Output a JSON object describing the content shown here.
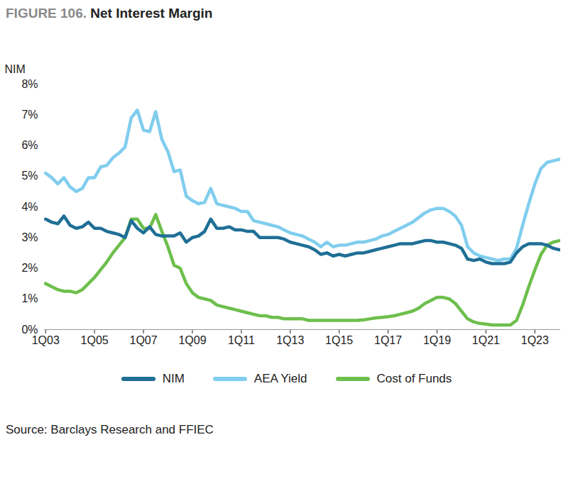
{
  "chart_data": {
    "type": "line",
    "title": "FIGURE 106. Net Interest Margin",
    "y_label": "NIM",
    "caption": "Source: Barclays Research and FFIEC",
    "categories": [
      "1Q03",
      null,
      null,
      null,
      null,
      null,
      null,
      null,
      "1Q05",
      null,
      null,
      null,
      null,
      null,
      null,
      null,
      "1Q07",
      null,
      null,
      null,
      null,
      null,
      null,
      null,
      "1Q09",
      null,
      null,
      null,
      null,
      null,
      null,
      null,
      "1Q11",
      null,
      null,
      null,
      null,
      null,
      null,
      null,
      "1Q13",
      null,
      null,
      null,
      null,
      null,
      null,
      null,
      "1Q15",
      null,
      null,
      null,
      null,
      null,
      null,
      null,
      "1Q17",
      null,
      null,
      null,
      null,
      null,
      null,
      null,
      "1Q19",
      null,
      null,
      null,
      null,
      null,
      null,
      null,
      "1Q21",
      null,
      null,
      null,
      null,
      null,
      null,
      null,
      "1Q23",
      null,
      null,
      null,
      null
    ],
    "series": [
      {
        "name": "NIM",
        "color": "#1f6f96",
        "values": [
          3.6,
          3.5,
          3.45,
          3.7,
          3.4,
          3.3,
          3.35,
          3.5,
          3.3,
          3.3,
          3.2,
          3.15,
          3.1,
          3.0,
          3.55,
          3.3,
          3.15,
          3.35,
          3.1,
          3.05,
          3.05,
          3.05,
          3.15,
          2.85,
          3.0,
          3.05,
          3.2,
          3.6,
          3.3,
          3.3,
          3.35,
          3.25,
          3.25,
          3.2,
          3.2,
          3.0,
          3.0,
          3.0,
          3.0,
          2.95,
          2.85,
          2.8,
          2.75,
          2.7,
          2.6,
          2.45,
          2.5,
          2.4,
          2.45,
          2.4,
          2.45,
          2.5,
          2.5,
          2.55,
          2.6,
          2.65,
          2.7,
          2.75,
          2.8,
          2.8,
          2.8,
          2.85,
          2.9,
          2.9,
          2.85,
          2.85,
          2.8,
          2.75,
          2.65,
          2.3,
          2.25,
          2.3,
          2.2,
          2.15,
          2.15,
          2.15,
          2.2,
          2.5,
          2.7,
          2.8,
          2.8,
          2.8,
          2.75,
          2.65,
          2.6
        ]
      },
      {
        "name": "AEA Yield",
        "color": "#80cdee",
        "values": [
          5.1,
          4.95,
          4.75,
          4.95,
          4.65,
          4.5,
          4.6,
          4.95,
          4.95,
          5.3,
          5.35,
          5.6,
          5.75,
          5.95,
          6.9,
          7.15,
          6.5,
          6.45,
          7.1,
          6.2,
          5.8,
          5.15,
          5.2,
          4.35,
          4.2,
          4.1,
          4.15,
          4.6,
          4.1,
          4.05,
          4.0,
          3.95,
          3.85,
          3.85,
          3.55,
          3.5,
          3.45,
          3.4,
          3.35,
          3.25,
          3.15,
          3.1,
          3.05,
          2.95,
          2.85,
          2.7,
          2.85,
          2.7,
          2.75,
          2.75,
          2.8,
          2.85,
          2.85,
          2.9,
          2.95,
          3.05,
          3.1,
          3.2,
          3.3,
          3.4,
          3.5,
          3.65,
          3.8,
          3.9,
          3.95,
          3.95,
          3.85,
          3.7,
          3.4,
          2.7,
          2.5,
          2.4,
          2.35,
          2.3,
          2.25,
          2.3,
          2.3,
          2.65,
          3.4,
          4.1,
          4.75,
          5.25,
          5.45,
          5.5,
          5.55
        ]
      },
      {
        "name": "Cost of Funds",
        "color": "#6dbf4c",
        "values": [
          1.5,
          1.4,
          1.3,
          1.25,
          1.25,
          1.2,
          1.3,
          1.5,
          1.7,
          1.95,
          2.2,
          2.5,
          2.75,
          3.0,
          3.6,
          3.6,
          3.3,
          3.3,
          3.75,
          3.2,
          2.7,
          2.1,
          2.0,
          1.5,
          1.2,
          1.05,
          1.0,
          0.95,
          0.8,
          0.75,
          0.7,
          0.65,
          0.6,
          0.55,
          0.5,
          0.45,
          0.45,
          0.4,
          0.4,
          0.35,
          0.35,
          0.35,
          0.35,
          0.3,
          0.3,
          0.3,
          0.3,
          0.3,
          0.3,
          0.3,
          0.3,
          0.3,
          0.32,
          0.35,
          0.38,
          0.4,
          0.42,
          0.45,
          0.5,
          0.55,
          0.6,
          0.7,
          0.85,
          0.95,
          1.05,
          1.05,
          1.0,
          0.85,
          0.6,
          0.35,
          0.25,
          0.2,
          0.18,
          0.15,
          0.15,
          0.15,
          0.15,
          0.3,
          0.8,
          1.4,
          1.95,
          2.45,
          2.75,
          2.85,
          2.9
        ]
      }
    ],
    "ylim": [
      0,
      8
    ],
    "yticks": [
      {
        "value": 0,
        "label": "0%"
      },
      {
        "value": 1,
        "label": "1%"
      },
      {
        "value": 2,
        "label": "2%"
      },
      {
        "value": 3,
        "label": "3%"
      },
      {
        "value": 4,
        "label": "4%"
      },
      {
        "value": 5,
        "label": "5%"
      },
      {
        "value": 6,
        "label": "6%"
      },
      {
        "value": 7,
        "label": "7%"
      },
      {
        "value": 8,
        "label": "8%"
      }
    ],
    "grid": false,
    "legend": "bottom"
  }
}
